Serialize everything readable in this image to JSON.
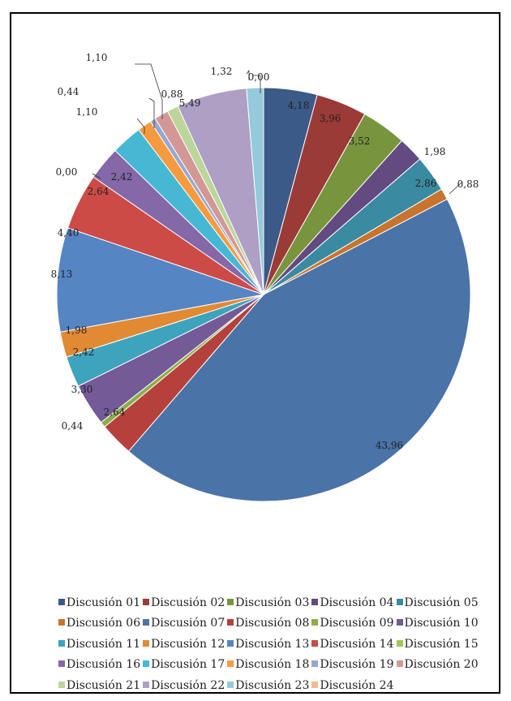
{
  "chart_data": {
    "type": "pie",
    "title": "",
    "legend_position": "bottom",
    "value_format": "comma-2-decimals",
    "series": [
      {
        "name": "Discusión 01",
        "value": 4.18,
        "label": "4,18",
        "color": "#3c5a87"
      },
      {
        "name": "Discusión 02",
        "value": 3.96,
        "label": "3,96",
        "color": "#9a3b38"
      },
      {
        "name": "Discusión 03",
        "value": 3.52,
        "label": "3,52",
        "color": "#78953d"
      },
      {
        "name": "Discusión 04",
        "value": 1.98,
        "label": "1,98",
        "color": "#634a80"
      },
      {
        "name": "Discusión 05",
        "value": 2.86,
        "label": "2,86",
        "color": "#3a8ba1"
      },
      {
        "name": "Discusión 06",
        "value": 0.88,
        "label": "0,88",
        "color": "#c8742e"
      },
      {
        "name": "Discusión 07",
        "value": 43.96,
        "label": "43,96",
        "color": "#4a73a8"
      },
      {
        "name": "Discusión 08",
        "value": 2.64,
        "label": "2,64",
        "color": "#b5413d"
      },
      {
        "name": "Discusión 09",
        "value": 0.44,
        "label": "0,44",
        "color": "#8eae48"
      },
      {
        "name": "Discusión 10",
        "value": 3.3,
        "label": "3,30",
        "color": "#745a97"
      },
      {
        "name": "Discusión 11",
        "value": 2.42,
        "label": "2,42",
        "color": "#3ea3bd"
      },
      {
        "name": "Discusión 12",
        "value": 1.98,
        "label": "1,98",
        "color": "#e28934"
      },
      {
        "name": "Discusión 13",
        "value": 8.13,
        "label": "8,13",
        "color": "#5585c2"
      },
      {
        "name": "Discusión 14",
        "value": 4.4,
        "label": "4,40",
        "color": "#cc4b47"
      },
      {
        "name": "Discusión 15",
        "value": 0.0,
        "label": "0,00",
        "color": "#a2c754"
      },
      {
        "name": "Discusión 16",
        "value": 2.64,
        "label": "2,64",
        "color": "#8468a8"
      },
      {
        "name": "Discusión 17",
        "value": 2.42,
        "label": "2,42",
        "color": "#47b8d4"
      },
      {
        "name": "Discusión 18",
        "value": 1.1,
        "label": "1,10",
        "color": "#f69a3f"
      },
      {
        "name": "Discusión 19",
        "value": 0.44,
        "label": "0,44",
        "color": "#95a8cf"
      },
      {
        "name": "Discusión 20",
        "value": 1.1,
        "label": "1,10",
        "color": "#d39896"
      },
      {
        "name": "Discusión 21",
        "value": 0.88,
        "label": "0,88",
        "color": "#bcd59b"
      },
      {
        "name": "Discusión 22",
        "value": 5.49,
        "label": "5,49",
        "color": "#ae9fc5"
      },
      {
        "name": "Discusión 23",
        "value": 1.32,
        "label": "1,32",
        "color": "#94cadb"
      },
      {
        "name": "Discusión 24",
        "value": 0.0,
        "label": "0,00",
        "color": "#f7b98b"
      }
    ]
  }
}
